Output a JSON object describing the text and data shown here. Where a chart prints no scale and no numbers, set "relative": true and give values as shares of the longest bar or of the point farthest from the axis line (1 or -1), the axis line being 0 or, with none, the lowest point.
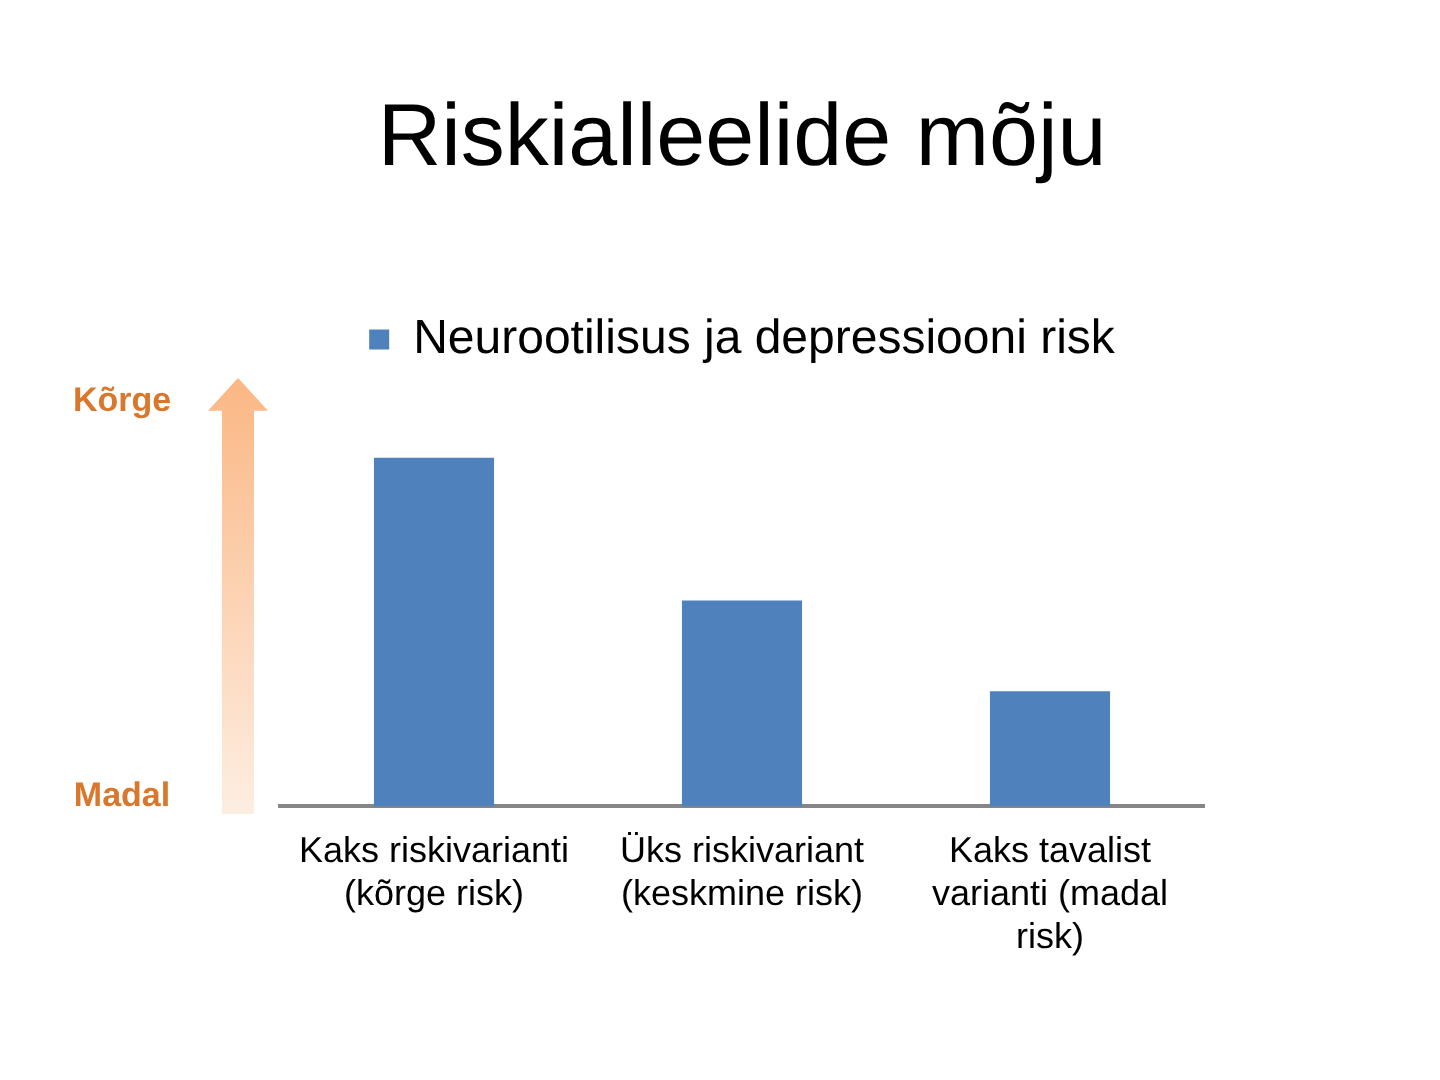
{
  "chart_data": {
    "type": "bar",
    "title": "Riskialleelide mõju",
    "categories": [
      "Kaks riskivarianti (kõrge risk)",
      "Üks riskivariant (keskmine risk)",
      "Kaks tavalist varianti (madal risk)"
    ],
    "series": [
      {
        "name": "Neurootilisus ja depressiooni risk",
        "color": "#4f81bd",
        "values": [
          1,
          0.59,
          0.33
        ]
      }
    ],
    "relative": true,
    "legend": "top",
    "annotations": [
      "Kõrge",
      "Madal"
    ]
  }
}
